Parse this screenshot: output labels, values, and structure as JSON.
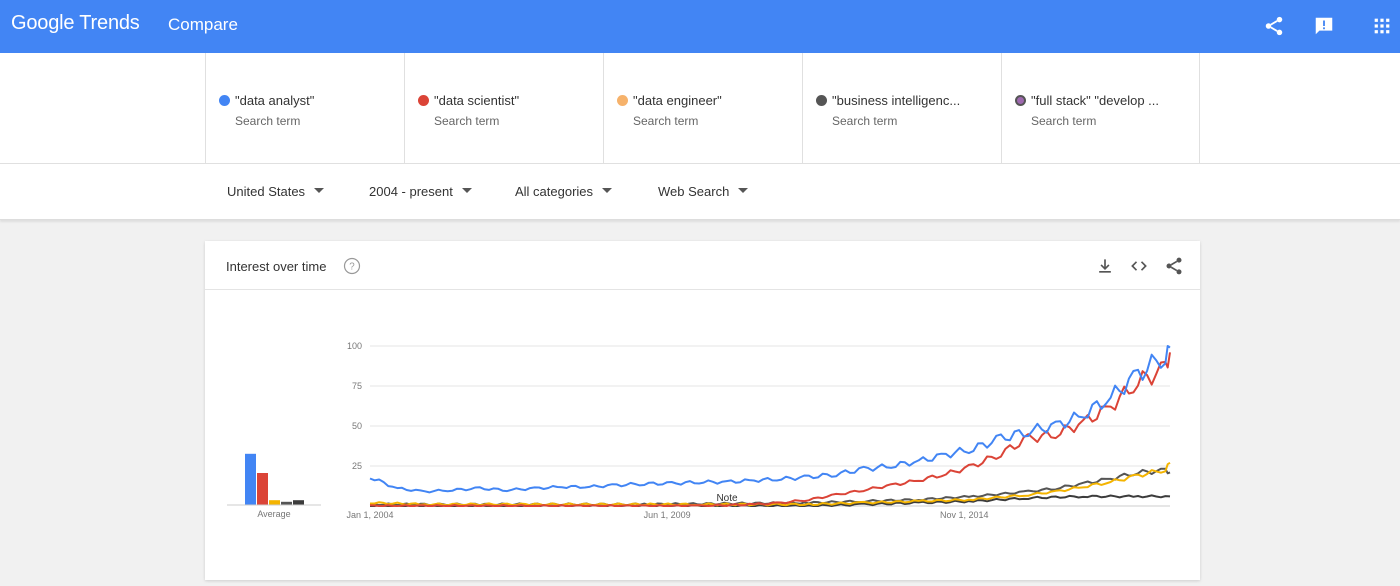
{
  "header": {
    "logo": "Google Trends",
    "title": "Compare",
    "share_icon": "share-icon",
    "feedback_icon": "feedback-icon",
    "apps_icon": "apps-grid-icon"
  },
  "terms": [
    {
      "label": "\"data analyst\"",
      "sub": "Search term",
      "color": "#4285f4"
    },
    {
      "label": "\"data scientist\"",
      "sub": "Search term",
      "color": "#db4437"
    },
    {
      "label": "\"data engineer\"",
      "sub": "Search term",
      "color": "#f4b400"
    },
    {
      "label": "\"business intelligenc...",
      "sub": "Search term",
      "color": "#555555"
    },
    {
      "label": "\"full stack\" \"develop ...",
      "sub": "Search term",
      "color": "#9e69af"
    }
  ],
  "filters": {
    "region": "United States",
    "time": "2004 - present",
    "category": "All categories",
    "search_type": "Web Search"
  },
  "card": {
    "title": "Interest over time",
    "average_label": "Average",
    "note_label": "Note"
  },
  "chart_data": {
    "type": "line",
    "title": "Interest over time",
    "ylim": [
      0,
      100
    ],
    "yticks": [
      "100",
      "75",
      "50",
      "25"
    ],
    "xticks": [
      "Jan 1, 2004",
      "Jun 1, 2009",
      "Nov 1, 2014"
    ],
    "x_range": [
      "2004-01",
      "2018-08"
    ],
    "grid": true,
    "series": [
      {
        "name": "\"data analyst\"",
        "color": "#4285f4",
        "points": [
          [
            "2004-01",
            18
          ],
          [
            "2004-07",
            11
          ],
          [
            "2005-01",
            9
          ],
          [
            "2005-07",
            10
          ],
          [
            "2006-01",
            11
          ],
          [
            "2006-07",
            10
          ],
          [
            "2007-01",
            11
          ],
          [
            "2007-07",
            12
          ],
          [
            "2008-01",
            12
          ],
          [
            "2008-07",
            13
          ],
          [
            "2009-01",
            14
          ],
          [
            "2009-07",
            14
          ],
          [
            "2010-01",
            15
          ],
          [
            "2010-07",
            15
          ],
          [
            "2011-01",
            16
          ],
          [
            "2011-07",
            17
          ],
          [
            "2012-01",
            18
          ],
          [
            "2012-07",
            20
          ],
          [
            "2013-01",
            23
          ],
          [
            "2013-07",
            25
          ],
          [
            "2014-01",
            28
          ],
          [
            "2014-07",
            32
          ],
          [
            "2015-01",
            36
          ],
          [
            "2015-07",
            42
          ],
          [
            "2016-01",
            47
          ],
          [
            "2016-07",
            50
          ],
          [
            "2017-01",
            57
          ],
          [
            "2017-07",
            68
          ],
          [
            "2018-01",
            82
          ],
          [
            "2018-07",
            95
          ],
          [
            "2018-08",
            99
          ]
        ]
      },
      {
        "name": "\"data scientist\"",
        "color": "#db4437",
        "points": [
          [
            "2004-01",
            0
          ],
          [
            "2007-01",
            0
          ],
          [
            "2010-01",
            0
          ],
          [
            "2011-01",
            1
          ],
          [
            "2011-07",
            2
          ],
          [
            "2012-01",
            4
          ],
          [
            "2012-07",
            7
          ],
          [
            "2013-01",
            10
          ],
          [
            "2013-07",
            13
          ],
          [
            "2014-01",
            16
          ],
          [
            "2014-07",
            20
          ],
          [
            "2015-01",
            25
          ],
          [
            "2015-07",
            33
          ],
          [
            "2016-01",
            42
          ],
          [
            "2016-07",
            45
          ],
          [
            "2017-01",
            52
          ],
          [
            "2017-07",
            62
          ],
          [
            "2018-01",
            78
          ],
          [
            "2018-07",
            85
          ],
          [
            "2018-08",
            96
          ]
        ]
      },
      {
        "name": "\"data engineer\"",
        "color": "#f4b400",
        "points": [
          [
            "2004-01",
            2
          ],
          [
            "2005-01",
            1
          ],
          [
            "2007-01",
            1
          ],
          [
            "2010-01",
            1
          ],
          [
            "2012-01",
            1
          ],
          [
            "2013-01",
            2
          ],
          [
            "2014-01",
            3
          ],
          [
            "2015-01",
            4
          ],
          [
            "2016-01",
            7
          ],
          [
            "2016-07",
            9
          ],
          [
            "2017-01",
            12
          ],
          [
            "2017-07",
            15
          ],
          [
            "2018-01",
            19
          ],
          [
            "2018-07",
            23
          ],
          [
            "2018-08",
            27
          ]
        ]
      },
      {
        "name": "\"business intelligenc...",
        "color": "#555555",
        "points": [
          [
            "2004-01",
            1
          ],
          [
            "2006-01",
            1
          ],
          [
            "2009-01",
            1
          ],
          [
            "2012-01",
            2
          ],
          [
            "2013-01",
            3
          ],
          [
            "2014-01",
            4
          ],
          [
            "2015-01",
            6
          ],
          [
            "2016-01",
            9
          ],
          [
            "2016-07",
            11
          ],
          [
            "2017-01",
            14
          ],
          [
            "2017-07",
            17
          ],
          [
            "2018-01",
            21
          ],
          [
            "2018-07",
            22
          ],
          [
            "2018-08",
            21
          ]
        ]
      },
      {
        "name": "\"full stack\" \"develop ...",
        "color": "#3c3c3c",
        "points": [
          [
            "2004-01",
            0
          ],
          [
            "2012-01",
            0
          ],
          [
            "2013-01",
            1
          ],
          [
            "2014-01",
            2
          ],
          [
            "2015-01",
            3
          ],
          [
            "2016-01",
            5
          ],
          [
            "2017-01",
            6
          ],
          [
            "2018-01",
            6
          ],
          [
            "2018-08",
            6
          ]
        ]
      }
    ],
    "averages": [
      32,
      20,
      3,
      2,
      3
    ]
  }
}
